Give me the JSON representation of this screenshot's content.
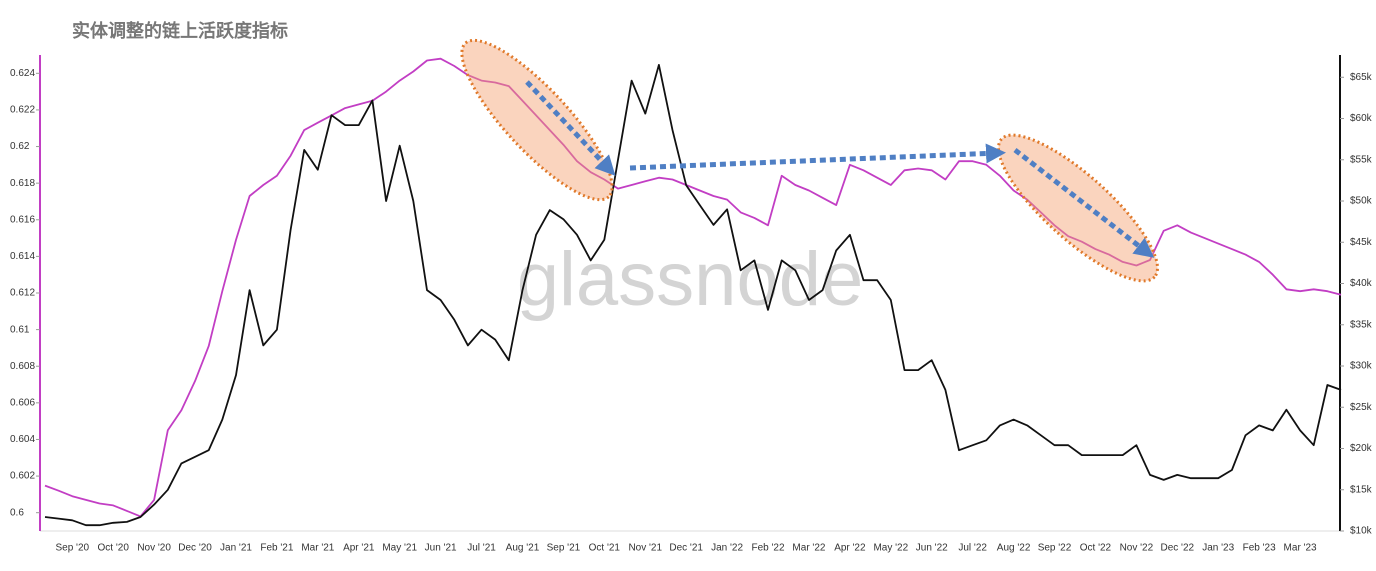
{
  "chart_data": {
    "type": "line",
    "title": "实体调整的链上活跃度指标",
    "watermark": "glassnode",
    "categories": [
      null,
      null,
      "Sep '20",
      null,
      null,
      "Oct '20",
      null,
      null,
      "Nov '20",
      null,
      null,
      "Dec '20",
      null,
      null,
      "Jan '21",
      null,
      null,
      "Feb '21",
      null,
      null,
      "Mar '21",
      null,
      null,
      "Apr '21",
      null,
      null,
      "May '21",
      null,
      null,
      "Jun '21",
      null,
      null,
      "Jul '21",
      null,
      null,
      "Aug '21",
      null,
      null,
      "Sep '21",
      null,
      null,
      "Oct '21",
      null,
      null,
      "Nov '21",
      null,
      null,
      "Dec '21",
      null,
      null,
      "Jan '22",
      null,
      null,
      "Feb '22",
      null,
      null,
      "Mar '22",
      null,
      null,
      "Apr '22",
      null,
      null,
      "May '22",
      null,
      null,
      "Jun '22",
      null,
      null,
      "Jul '22",
      null,
      null,
      "Aug '22",
      null,
      null,
      "Sep '22",
      null,
      null,
      "Oct '22",
      null,
      null,
      "Nov '22",
      null,
      null,
      "Dec '22",
      null,
      null,
      "Jan '23",
      null,
      null,
      "Feb '23",
      null,
      null,
      "Mar '23",
      null,
      null,
      null
    ],
    "series": [
      {
        "color": "#c23ec4",
        "axis": "y",
        "values": [
          0.60148,
          0.6012,
          0.6009,
          0.6007,
          0.6005,
          0.6004,
          0.6001,
          0.5998,
          0.6007,
          0.6045,
          0.6056,
          0.6072,
          0.6091,
          0.6121,
          0.6149,
          0.6173,
          0.6179,
          0.6184,
          0.6195,
          0.6209,
          0.6213,
          0.6217,
          0.6221,
          0.6223,
          0.6225,
          0.623,
          0.6236,
          0.6241,
          0.6247,
          0.6248,
          0.6244,
          0.6239,
          0.6236,
          0.6235,
          0.6233,
          0.6225,
          0.6217,
          0.6209,
          0.6201,
          0.6192,
          0.6186,
          0.6182,
          0.6177,
          0.6179,
          0.6181,
          0.6183,
          0.6182,
          0.6179,
          0.6176,
          0.6173,
          0.6171,
          0.6164,
          0.6161,
          0.6157,
          0.6184,
          0.6179,
          0.6176,
          0.6172,
          0.6168,
          0.619,
          0.6187,
          0.6183,
          0.6179,
          0.6187,
          0.6188,
          0.6187,
          0.6182,
          0.6192,
          0.6192,
          0.619,
          0.6184,
          0.6176,
          0.6171,
          0.6164,
          0.6157,
          0.6151,
          0.6148,
          0.6144,
          0.6141,
          0.6137,
          0.6135,
          0.6138,
          0.6154,
          0.6157,
          0.6153,
          0.615,
          0.6147,
          0.6144,
          0.6141,
          0.6137,
          0.613,
          0.6122,
          0.6121,
          0.6122,
          0.6121,
          0.6119
        ]
      },
      {
        "color": "#111111",
        "axis": "y2",
        "values": [
          11700,
          11500,
          11300,
          10700,
          10700,
          11000,
          11100,
          11700,
          13200,
          15000,
          18200,
          19000,
          19800,
          23500,
          28900,
          39200,
          32500,
          34400,
          46500,
          56200,
          53800,
          60400,
          59200,
          59200,
          62200,
          50000,
          56700,
          50000,
          39200,
          38000,
          35600,
          32500,
          34400,
          33200,
          30700,
          39200,
          45900,
          48900,
          47800,
          45900,
          42800,
          45300,
          55000,
          64600,
          60600,
          66500,
          58600,
          51900,
          49500,
          47100,
          49000,
          41600,
          42800,
          36800,
          42800,
          41600,
          38000,
          39200,
          44000,
          45900,
          40400,
          40400,
          38000,
          29500,
          29500,
          30700,
          27100,
          19800,
          20400,
          21000,
          22800,
          23500,
          22800,
          21600,
          20400,
          20400,
          19200,
          19200,
          19200,
          19200,
          20400,
          16800,
          16200,
          16800,
          16400,
          16400,
          16400,
          17400,
          21600,
          22800,
          22200,
          24700,
          22200,
          20400,
          27700,
          27100
        ]
      }
    ],
    "ylim": [
      0.599,
      0.625
    ],
    "yticks": [
      0.6,
      0.602,
      0.604,
      0.606,
      0.608,
      0.61,
      0.612,
      0.614,
      0.616,
      0.618,
      0.62,
      0.622,
      0.624
    ],
    "y2lim": [
      10000,
      67700
    ],
    "y2ticks": [
      {
        "value": 10000,
        "label": "$10k"
      },
      {
        "value": 15000,
        "label": "$15k"
      },
      {
        "value": 20000,
        "label": "$20k"
      },
      {
        "value": 25000,
        "label": "$25k"
      },
      {
        "value": 30000,
        "label": "$30k"
      },
      {
        "value": 35000,
        "label": "$35k"
      },
      {
        "value": 40000,
        "label": "$40k"
      },
      {
        "value": 45000,
        "label": "$45k"
      },
      {
        "value": 50000,
        "label": "$50k"
      },
      {
        "value": 55000,
        "label": "$55k"
      },
      {
        "value": 60000,
        "label": "$60k"
      },
      {
        "value": 65000,
        "label": "$65k"
      }
    ]
  }
}
